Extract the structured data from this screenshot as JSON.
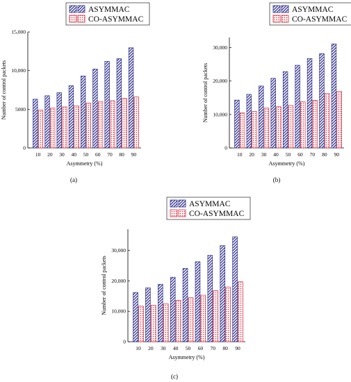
{
  "colors": {
    "asymmac": "#2e2e8c",
    "co_asymmac": "#d62b3a",
    "axis": "#000000"
  },
  "chart_data": [
    {
      "type": "bar",
      "panel_label": "(a)",
      "legend_position": "top-center",
      "xlabel": "Asymmetry (%)",
      "ylabel": "Number of control packets",
      "categories": [
        "10",
        "20",
        "30",
        "40",
        "50",
        "60",
        "70",
        "80",
        "90"
      ],
      "ylim": [
        0,
        15000
      ],
      "yticks": [
        0,
        5000,
        10000,
        15000
      ],
      "ytick_labels": [
        "0",
        "5000",
        "10,000",
        "15,000"
      ],
      "grid": false,
      "series": [
        {
          "name": "ASYMMAC",
          "pattern": "diagonal-stripes",
          "values": [
            6300,
            6750,
            7150,
            8050,
            9300,
            10200,
            11200,
            11550,
            12950
          ]
        },
        {
          "name": "CO-ASYMMAC",
          "pattern": "dotted",
          "values": [
            4900,
            5150,
            5300,
            5450,
            5800,
            6000,
            6100,
            6400,
            6600
          ]
        }
      ]
    },
    {
      "type": "bar",
      "panel_label": "(b)",
      "legend_position": "top-center",
      "xlabel": "Asymmetry (%)",
      "ylabel": "Number of control packets",
      "categories": [
        "10",
        "20",
        "30",
        "40",
        "50",
        "60",
        "70",
        "80",
        "90"
      ],
      "ylim": [
        0,
        33000
      ],
      "yticks": [
        0,
        10000,
        20000,
        30000
      ],
      "ytick_labels": [
        "0",
        "10,000",
        "20,000",
        "30,000"
      ],
      "grid": false,
      "series": [
        {
          "name": "ASYMMAC",
          "pattern": "diagonal-stripes",
          "values": [
            14300,
            16000,
            18500,
            20800,
            22800,
            24700,
            26700,
            28200,
            31100
          ]
        },
        {
          "name": "CO-ASYMMAC",
          "pattern": "dotted",
          "values": [
            10500,
            10900,
            11900,
            12300,
            12700,
            13800,
            14200,
            16300,
            16900
          ]
        }
      ]
    },
    {
      "type": "bar",
      "panel_label": "(c)",
      "legend_position": "top-center",
      "xlabel": "Asymmetry (%)",
      "ylabel": "Number of control packets",
      "categories": [
        "10",
        "20",
        "30",
        "40",
        "50",
        "60",
        "70",
        "80",
        "90"
      ],
      "ylim": [
        0,
        37000
      ],
      "yticks": [
        0,
        10000,
        20000,
        30000
      ],
      "ytick_labels": [
        "0",
        "10,000",
        "20,000",
        "30,000"
      ],
      "grid": false,
      "series": [
        {
          "name": "ASYMMAC",
          "pattern": "diagonal-stripes",
          "values": [
            16200,
            17700,
            18900,
            21200,
            24100,
            26300,
            28400,
            31600,
            34500
          ]
        },
        {
          "name": "CO-ASYMMAC",
          "pattern": "dotted",
          "values": [
            11700,
            12000,
            12500,
            13600,
            14500,
            15300,
            16800,
            18000,
            19700
          ]
        }
      ]
    }
  ]
}
